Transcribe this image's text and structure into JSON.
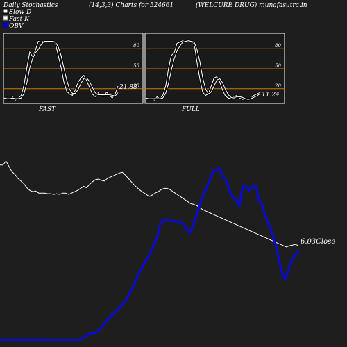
{
  "header": {
    "title": "Daily Stochastics",
    "params": "(14,3,3) Charts for 524661",
    "company": "(WELCURE DRUG) munafasutra.in"
  },
  "legend": [
    {
      "label": "Slow  D",
      "swatch": "#ffffff",
      "border": "#000000"
    },
    {
      "label": "Fast K",
      "swatch": "#ffffff",
      "border": "#888888"
    },
    {
      "label": "OBV",
      "swatch": "#0000cc",
      "border": "#0000cc"
    }
  ],
  "colors": {
    "background": "#1e1e1e",
    "panel_bg": "#1a1a1a",
    "panel_border": "#ffffff",
    "level_line": "#cc7a00",
    "stoch_line": "#ffffff",
    "obv": "#0a0ad2",
    "price": "#ffffff"
  },
  "chart_data": [
    {
      "type": "line",
      "panel": "fast",
      "label": "FAST",
      "levels": [
        80,
        50,
        20
      ],
      "ylim": [
        0,
        100
      ],
      "last_value_label": "21.88",
      "series": [
        {
          "name": "Fast K",
          "values": [
            5,
            6,
            4,
            8,
            3,
            6,
            10,
            26,
            52,
            75,
            68,
            78,
            91,
            90,
            92,
            91,
            90,
            91,
            88,
            70,
            52,
            30,
            16,
            12,
            10,
            18,
            30,
            36,
            40,
            32,
            22,
            12,
            8,
            14,
            10,
            9,
            15,
            10,
            6,
            12,
            24
          ]
        },
        {
          "name": "Slow  D",
          "values": [
            6,
            5,
            5,
            6,
            5,
            5,
            6,
            13,
            29,
            51,
            65,
            74,
            79,
            86,
            91,
            91,
            91,
            91,
            90,
            83,
            70,
            51,
            33,
            19,
            13,
            13,
            19,
            28,
            35,
            36,
            31,
            22,
            14,
            11,
            11,
            11,
            11,
            11,
            10,
            9,
            14
          ]
        }
      ]
    },
    {
      "type": "line",
      "panel": "full",
      "label": "FULL",
      "levels": [
        80,
        50,
        20
      ],
      "ylim": [
        0,
        100
      ],
      "last_value_label": "11.24",
      "series": [
        {
          "name": "Fast K",
          "values": [
            5,
            4,
            6,
            3,
            8,
            5,
            10,
            24,
            50,
            70,
            74,
            88,
            90,
            92,
            91,
            93,
            90,
            88,
            60,
            35,
            15,
            10,
            12,
            24,
            36,
            38,
            30,
            18,
            9,
            6,
            5,
            8,
            10,
            6,
            4,
            5,
            4,
            6,
            10,
            12,
            14
          ]
        },
        {
          "name": "Slow  D",
          "values": [
            6,
            5,
            5,
            5,
            5,
            5,
            6,
            13,
            28,
            48,
            65,
            77,
            84,
            90,
            91,
            92,
            91,
            90,
            79,
            61,
            37,
            20,
            12,
            15,
            24,
            33,
            35,
            29,
            19,
            11,
            7,
            6,
            8,
            8,
            7,
            5,
            4,
            5,
            7,
            9,
            12
          ]
        }
      ]
    },
    {
      "type": "line",
      "panel": "price_obv",
      "close_label": "6.03Close",
      "series": [
        {
          "name": "Price",
          "values": [
            7.24,
            7.24,
            7.3,
            7.22,
            7.14,
            7.1,
            7.04,
            7.0,
            6.96,
            6.9,
            6.86,
            6.84,
            6.85,
            6.82,
            6.82,
            6.82,
            6.81,
            6.81,
            6.8,
            6.81,
            6.8,
            6.82,
            6.82,
            6.8,
            6.82,
            6.84,
            6.86,
            6.89,
            6.92,
            6.9,
            6.95,
            6.99,
            7.02,
            7.03,
            7.01,
            7.0,
            7.04,
            7.06,
            7.08,
            7.1,
            7.12,
            7.13,
            7.09,
            7.04,
            6.99,
            6.94,
            6.9,
            6.86,
            6.83,
            6.8,
            6.77,
            6.79,
            6.82,
            6.84,
            6.87,
            6.89,
            6.89,
            6.87,
            6.84,
            6.81,
            6.78,
            6.75,
            6.72,
            6.69,
            6.66,
            6.65,
            6.63,
            6.6,
            6.57,
            6.55,
            6.53,
            6.51,
            6.49,
            6.47,
            6.45,
            6.43,
            6.41,
            6.39,
            6.37,
            6.35,
            6.33,
            6.31,
            6.29,
            6.27,
            6.25,
            6.23,
            6.21,
            6.19,
            6.17,
            6.15,
            6.13,
            6.11,
            6.09,
            6.07,
            6.05,
            6.03,
            6.01,
            6.03,
            6.04,
            6.05,
            6.03
          ]
        },
        {
          "name": "OBV",
          "values": [
            0.4,
            0.2,
            0.6,
            0.2,
            0.5,
            0.3,
            0.4,
            0.7,
            0.4,
            0.5,
            0.2,
            0.5,
            0.7,
            0.4,
            0.6,
            0.3,
            0.1,
            0.2,
            0.1,
            0.0,
            0.1,
            0.0,
            0.1,
            0.0,
            0.3,
            1.5,
            4.8,
            7.8,
            9.0,
            9.5,
            11.5,
            16.5,
            22.0,
            27.0,
            31.5,
            35.0,
            39.0,
            44.0,
            49.0,
            55.0,
            63.0,
            72.0,
            83.0,
            90.0,
            98.0,
            105.0,
            112.0,
            122.0,
            132.0,
            150.0,
            153.0,
            153.5,
            152.0,
            152.0,
            151.5,
            150.0,
            148.0,
            141.0,
            137.0,
            148.0,
            160.0,
            174.0,
            186.0,
            194.0,
            204.0,
            216.0,
            216.0,
            219.0,
            208.0,
            203.0,
            191.0,
            182.0,
            178.0,
            171.0,
            196.0,
            196.0,
            191.0,
            196.0,
            197.0,
            178.0,
            172.0,
            157.0,
            148.0,
            136.0,
            123.0,
            104.0,
            85.0,
            78.0,
            90.0,
            102.0,
            109.0,
            113.0
          ]
        }
      ]
    }
  ]
}
